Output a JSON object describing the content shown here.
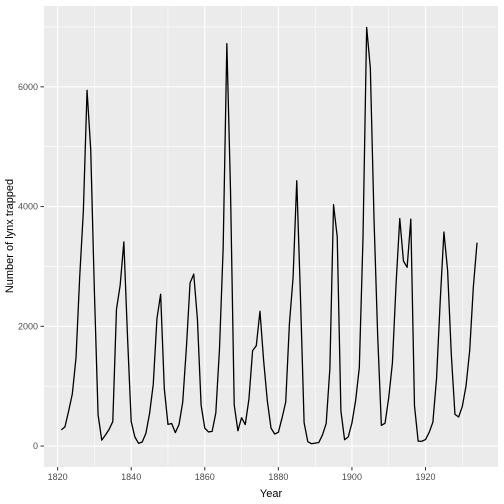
{
  "chart_data": {
    "type": "line",
    "title": "",
    "xlabel": "Year",
    "ylabel": "Number of lynx trapped",
    "xlim": [
      1816.3,
      1939.7
    ],
    "ylim": [
      -350,
      7350
    ],
    "x_ticks": [
      1820,
      1840,
      1860,
      1880,
      1900,
      1920
    ],
    "y_ticks": [
      0,
      2000,
      4000,
      6000
    ],
    "grid": true,
    "legend": "none",
    "colors": {
      "panel": "#ebebeb",
      "grid": "#ffffff",
      "line": "#000000",
      "tick_text": "#4d4d4d"
    },
    "series": [
      {
        "x": [
          1821,
          1822,
          1823,
          1824,
          1825,
          1826,
          1827,
          1828,
          1829,
          1830,
          1831,
          1832,
          1833,
          1834,
          1835,
          1836,
          1837,
          1838,
          1839,
          1840,
          1841,
          1842,
          1843,
          1844,
          1845,
          1846,
          1847,
          1848,
          1849,
          1850,
          1851,
          1852,
          1853,
          1854,
          1855,
          1856,
          1857,
          1858,
          1859,
          1860,
          1861,
          1862,
          1863,
          1864,
          1865,
          1866,
          1867,
          1868,
          1869,
          1870,
          1871,
          1872,
          1873,
          1874,
          1875,
          1876,
          1877,
          1878,
          1879,
          1880,
          1881,
          1882,
          1883,
          1884,
          1885,
          1886,
          1887,
          1888,
          1889,
          1890,
          1891,
          1892,
          1893,
          1894,
          1895,
          1896,
          1897,
          1898,
          1899,
          1900,
          1901,
          1902,
          1903,
          1904,
          1905,
          1906,
          1907,
          1908,
          1909,
          1910,
          1911,
          1912,
          1913,
          1914,
          1915,
          1916,
          1917,
          1918,
          1919,
          1920,
          1921,
          1922,
          1923,
          1924,
          1925,
          1926,
          1927,
          1928,
          1929,
          1930,
          1931,
          1932,
          1933,
          1934
        ],
        "y": [
          269,
          321,
          585,
          871,
          1475,
          2821,
          3928,
          5943,
          4950,
          2577,
          523,
          98,
          184,
          279,
          409,
          2285,
          2685,
          3409,
          1824,
          409,
          151,
          45,
          68,
          213,
          546,
          1033,
          2129,
          2536,
          957,
          361,
          377,
          225,
          360,
          731,
          1638,
          2725,
          2871,
          2119,
          684,
          299,
          236,
          245,
          552,
          1623,
          3311,
          6721,
          4254,
          687,
          255,
          473,
          358,
          784,
          1594,
          1676,
          2251,
          1426,
          756,
          299,
          201,
          229,
          469,
          736,
          2042,
          2811,
          4431,
          2511,
          389,
          73,
          39,
          49,
          59,
          188,
          377,
          1292,
          4031,
          3495,
          587,
          105,
          153,
          387,
          758,
          1307,
          3465,
          6991,
          6313,
          3794,
          1836,
          345,
          382,
          808,
          1388,
          2713,
          3800,
          3091,
          2985,
          3790,
          674,
          81,
          80,
          108,
          229,
          399,
          1132,
          2432,
          3574,
          2935,
          1537,
          529,
          485,
          662,
          1000,
          1590,
          2657,
          3396
        ]
      }
    ]
  }
}
